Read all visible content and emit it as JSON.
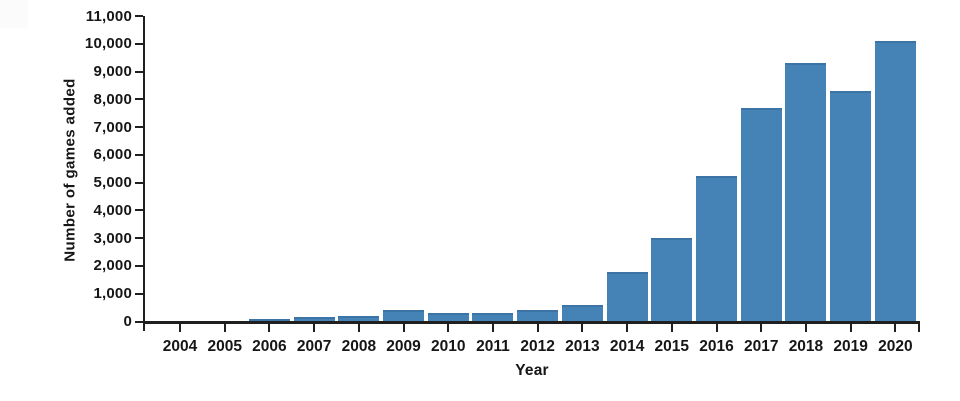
{
  "chart_data": {
    "type": "bar",
    "title": "",
    "xlabel": "Year",
    "ylabel": "Number of games added",
    "categories": [
      "2004",
      "2005",
      "2006",
      "2007",
      "2008",
      "2009",
      "2010",
      "2011",
      "2012",
      "2013",
      "2014",
      "2015",
      "2016",
      "2017",
      "2018",
      "2019",
      "2020"
    ],
    "values": [
      0,
      0,
      100,
      150,
      200,
      400,
      300,
      300,
      400,
      600,
      1800,
      3000,
      5250,
      7700,
      9300,
      8300,
      10100
    ],
    "ylim": [
      0,
      11000
    ],
    "ytick_step": 1000,
    "ytick_labels": [
      "0",
      "1,000",
      "2,000",
      "3,000",
      "4,000",
      "5,000",
      "6,000",
      "7,000",
      "8,000",
      "9,000",
      "10,000",
      "11,000"
    ],
    "grid": false,
    "legend": "none",
    "bar_color": "#4583b6",
    "bar_edge_color": "#3d74a6",
    "axis_color": "#1f1f1f",
    "text_color": "#161616",
    "background_color": "#ffffff"
  }
}
